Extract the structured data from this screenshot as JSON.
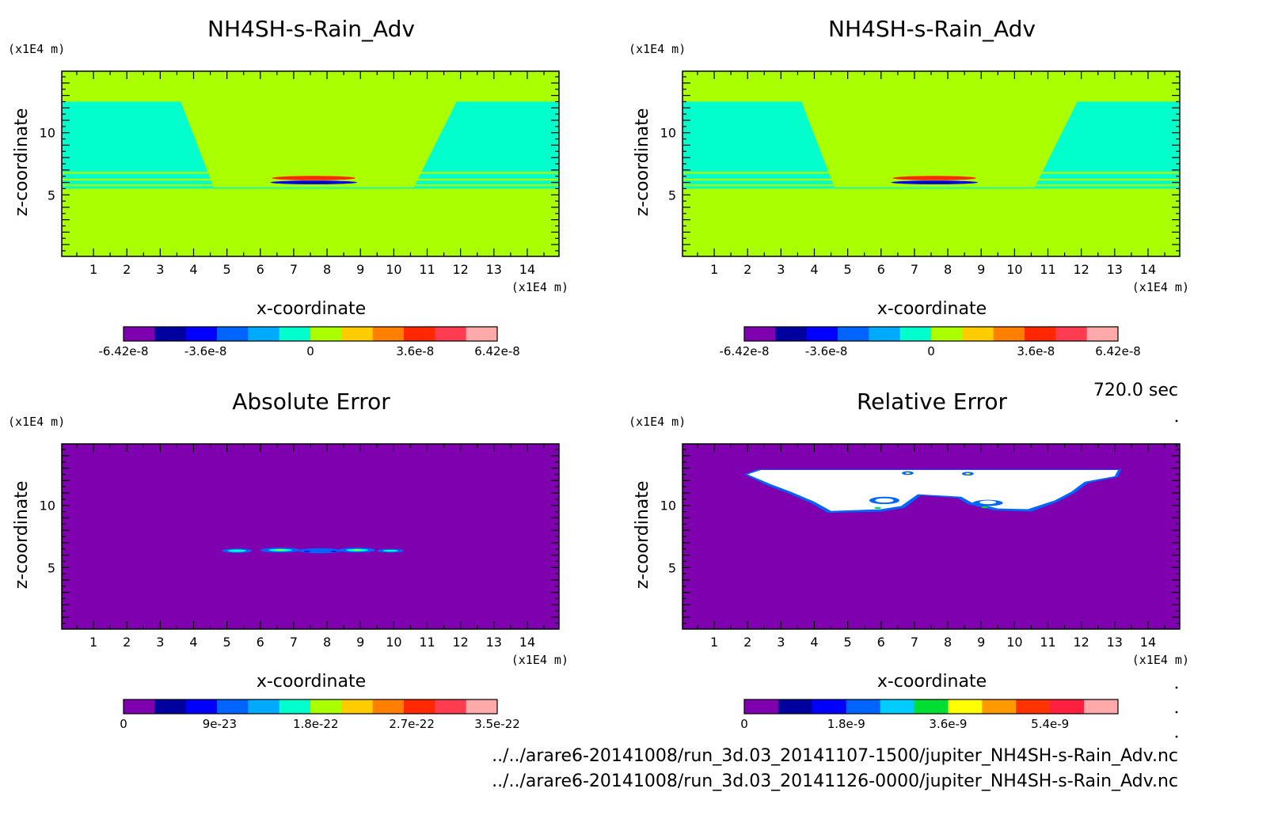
{
  "time_label": "720.0 sec",
  "files": [
    "../../arare6-20141008/run_3d.03_20141107-1500/jupiter_NH4SH-s-Rain_Adv.nc",
    "../../arare6-20141008/run_3d.03_20141126-0000/jupiter_NH4SH-s-Rain_Adv.nc"
  ],
  "chart_data": [
    {
      "type": "heatmap",
      "title": "NH4SH-s-Rain_Adv",
      "xlabel": "x-coordinate",
      "ylabel": "z-coordinate",
      "x_unit": "(x1E4 m)",
      "y_unit": "(x1E4 m)",
      "xlim": [
        0.05,
        14.95
      ],
      "ylim": [
        0.05,
        14.95
      ],
      "xticks": [
        "1",
        "2",
        "3",
        "4",
        "5",
        "6",
        "7",
        "8",
        "9",
        "10",
        "11",
        "12",
        "13",
        "14"
      ],
      "yticks": [
        "5",
        "10"
      ],
      "colorbar": {
        "colors": [
          "#7f00ae",
          "#00009e",
          "#0000ff",
          "#0064ff",
          "#00aaff",
          "#00ffcc",
          "#aaff00",
          "#ffcc00",
          "#ff8000",
          "#ff2800",
          "#ff3c50",
          "#ffaaaa"
        ],
        "labels": [
          "-6.42e-8",
          "-3.6e-8",
          "0",
          "3.6e-8",
          "6.42e-8"
        ],
        "label_values": [
          -6.42e-08,
          -3.6e-08,
          0,
          3.6e-08,
          6.42e-08
        ],
        "range": [
          -6.42e-08,
          6.42e-08
        ]
      },
      "field": {
        "background": "#aaff00",
        "regions": [
          {
            "kind": "band",
            "z": [
              12.5,
              14.95
            ],
            "color": "#aaff00"
          },
          {
            "kind": "band",
            "z": [
              5.5,
              12.5
            ],
            "color": "#00ffcc"
          },
          {
            "kind": "trapezoid",
            "top_x": [
              3.6,
              11.9
            ],
            "bottom_x": [
              4.6,
              10.6
            ],
            "z": [
              5.6,
              12.6
            ],
            "color": "#aaff00"
          },
          {
            "kind": "band",
            "z": [
              6.7,
              6.85
            ],
            "color": "#aaff00"
          },
          {
            "kind": "band",
            "z": [
              6.15,
              6.3
            ],
            "color": "#aaff00"
          },
          {
            "kind": "band",
            "z": [
              5.7,
              5.85
            ],
            "color": "#aaff00"
          },
          {
            "kind": "blob",
            "center": [
              7.6,
              6.35
            ],
            "size": [
              2.5,
              0.35
            ],
            "color": "#ff2800"
          },
          {
            "kind": "blob",
            "center": [
              7.6,
              6.0
            ],
            "size": [
              2.6,
              0.3
            ],
            "color": "#0000ff"
          },
          {
            "kind": "blob",
            "center": [
              7.6,
              6.0
            ],
            "size": [
              1.2,
              0.12
            ],
            "color": "#00009e"
          }
        ]
      }
    },
    {
      "type": "heatmap",
      "title": "NH4SH-s-Rain_Adv",
      "xlabel": "x-coordinate",
      "ylabel": "z-coordinate",
      "x_unit": "(x1E4 m)",
      "y_unit": "(x1E4 m)",
      "xlim": [
        0.05,
        14.95
      ],
      "ylim": [
        0.05,
        14.95
      ],
      "xticks": [
        "1",
        "2",
        "3",
        "4",
        "5",
        "6",
        "7",
        "8",
        "9",
        "10",
        "11",
        "12",
        "13",
        "14"
      ],
      "yticks": [
        "5",
        "10"
      ],
      "colorbar": {
        "colors": [
          "#7f00ae",
          "#00009e",
          "#0000ff",
          "#0064ff",
          "#00aaff",
          "#00ffcc",
          "#aaff00",
          "#ffcc00",
          "#ff8000",
          "#ff2800",
          "#ff3c50",
          "#ffaaaa"
        ],
        "labels": [
          "-6.42e-8",
          "-3.6e-8",
          "0",
          "3.6e-8",
          "6.42e-8"
        ],
        "label_values": [
          -6.42e-08,
          -3.6e-08,
          0,
          3.6e-08,
          6.42e-08
        ],
        "range": [
          -6.42e-08,
          6.42e-08
        ]
      },
      "field": {
        "background": "#aaff00",
        "regions": [
          {
            "kind": "band",
            "z": [
              12.5,
              14.95
            ],
            "color": "#aaff00"
          },
          {
            "kind": "band",
            "z": [
              5.5,
              12.5
            ],
            "color": "#00ffcc"
          },
          {
            "kind": "trapezoid",
            "top_x": [
              3.6,
              11.9
            ],
            "bottom_x": [
              4.6,
              10.6
            ],
            "z": [
              5.6,
              12.6
            ],
            "color": "#aaff00"
          },
          {
            "kind": "band",
            "z": [
              6.7,
              6.85
            ],
            "color": "#aaff00"
          },
          {
            "kind": "band",
            "z": [
              6.15,
              6.3
            ],
            "color": "#aaff00"
          },
          {
            "kind": "band",
            "z": [
              5.7,
              5.85
            ],
            "color": "#aaff00"
          },
          {
            "kind": "blob",
            "center": [
              7.6,
              6.35
            ],
            "size": [
              2.5,
              0.35
            ],
            "color": "#ff2800"
          },
          {
            "kind": "blob",
            "center": [
              7.6,
              6.0
            ],
            "size": [
              2.6,
              0.3
            ],
            "color": "#0000ff"
          },
          {
            "kind": "blob",
            "center": [
              7.6,
              6.0
            ],
            "size": [
              1.2,
              0.12
            ],
            "color": "#00009e"
          }
        ]
      }
    },
    {
      "type": "heatmap",
      "title": "Absolute Error",
      "xlabel": "x-coordinate",
      "ylabel": "z-coordinate",
      "x_unit": "(x1E4 m)",
      "y_unit": "(x1E4 m)",
      "xlim": [
        0.05,
        14.95
      ],
      "ylim": [
        0.05,
        14.95
      ],
      "xticks": [
        "1",
        "2",
        "3",
        "4",
        "5",
        "6",
        "7",
        "8",
        "9",
        "10",
        "11",
        "12",
        "13",
        "14"
      ],
      "yticks": [
        "5",
        "10"
      ],
      "colorbar": {
        "colors": [
          "#7f00ae",
          "#00009e",
          "#0000ff",
          "#0064ff",
          "#00aaff",
          "#00ffcc",
          "#aaff00",
          "#ffcc00",
          "#ff8000",
          "#ff2800",
          "#ff3c50",
          "#ffaaaa"
        ],
        "labels": [
          "0",
          "9e-23",
          "1.8e-22",
          "2.7e-22",
          "3.5e-22"
        ],
        "label_values": [
          0,
          9e-23,
          1.8e-22,
          2.7e-22,
          3.5e-22
        ],
        "range": [
          0,
          3.5e-22
        ]
      },
      "field": {
        "background": "#7f00ae",
        "regions": [
          {
            "kind": "blob",
            "center": [
              5.3,
              6.35
            ],
            "size": [
              0.9,
              0.35
            ],
            "color": "#0064ff"
          },
          {
            "kind": "blob",
            "center": [
              6.6,
              6.4
            ],
            "size": [
              1.2,
              0.4
            ],
            "color": "#0064ff"
          },
          {
            "kind": "blob",
            "center": [
              7.8,
              6.35
            ],
            "size": [
              1.3,
              0.4
            ],
            "color": "#0064ff"
          },
          {
            "kind": "blob",
            "center": [
              8.9,
              6.4
            ],
            "size": [
              1.1,
              0.4
            ],
            "color": "#0064ff"
          },
          {
            "kind": "blob",
            "center": [
              9.9,
              6.35
            ],
            "size": [
              0.8,
              0.3
            ],
            "color": "#0064ff"
          },
          {
            "kind": "blob",
            "center": [
              5.3,
              6.35
            ],
            "size": [
              0.55,
              0.2
            ],
            "color": "#00ffcc"
          },
          {
            "kind": "blob",
            "center": [
              6.6,
              6.4
            ],
            "size": [
              0.7,
              0.2
            ],
            "color": "#00ffcc"
          },
          {
            "kind": "blob",
            "center": [
              8.9,
              6.4
            ],
            "size": [
              0.65,
              0.2
            ],
            "color": "#00ffcc"
          },
          {
            "kind": "blob",
            "center": [
              9.9,
              6.35
            ],
            "size": [
              0.45,
              0.15
            ],
            "color": "#00ffcc"
          },
          {
            "kind": "blob",
            "center": [
              6.6,
              6.42
            ],
            "size": [
              0.3,
              0.1
            ],
            "color": "#aaff00"
          },
          {
            "kind": "blob",
            "center": [
              8.9,
              6.42
            ],
            "size": [
              0.25,
              0.1
            ],
            "color": "#aaff00"
          },
          {
            "kind": "blob",
            "center": [
              7.4,
              6.3
            ],
            "size": [
              0.2,
              0.1
            ],
            "color": "#0000ff"
          },
          {
            "kind": "blob",
            "center": [
              8.2,
              6.3
            ],
            "size": [
              0.2,
              0.1
            ],
            "color": "#0000ff"
          }
        ]
      }
    },
    {
      "type": "heatmap",
      "title": "Relative Error",
      "xlabel": "x-coordinate",
      "ylabel": "z-coordinate",
      "x_unit": "(x1E4 m)",
      "y_unit": "(x1E4 m)",
      "xlim": [
        0.05,
        14.95
      ],
      "ylim": [
        0.05,
        14.95
      ],
      "xticks": [
        "1",
        "2",
        "3",
        "4",
        "5",
        "6",
        "7",
        "8",
        "9",
        "10",
        "11",
        "12",
        "13",
        "14"
      ],
      "yticks": [
        "5",
        "10"
      ],
      "colorbar": {
        "colors": [
          "#7f00ae",
          "#00009e",
          "#0000ff",
          "#0064ff",
          "#00ccff",
          "#00dd33",
          "#ffff00",
          "#ff9900",
          "#ff3300",
          "#ff2040",
          "#ffaaaa"
        ],
        "labels": [
          "0",
          "1.8e-9",
          "3.6e-9",
          "5.4e-9"
        ],
        "label_values": [
          0,
          1.8e-09,
          3.6e-09,
          5.4e-09
        ],
        "range": [
          0,
          6.6e-09
        ]
      },
      "field": {
        "background": "#7f00ae",
        "regions": [
          {
            "kind": "polygon",
            "color": "#0064ff",
            "points": [
              [
                1.9,
                12.5
              ],
              [
                2.3,
                12.9
              ],
              [
                13.2,
                12.9
              ],
              [
                13.1,
                12.3
              ],
              [
                12.2,
                11.8
              ],
              [
                11.8,
                11.0
              ],
              [
                11.3,
                10.3
              ],
              [
                10.5,
                9.5
              ],
              [
                9.4,
                9.6
              ],
              [
                8.6,
                10.1
              ],
              [
                8.3,
                10.6
              ],
              [
                7.2,
                10.8
              ],
              [
                6.7,
                9.8
              ],
              [
                6.0,
                9.5
              ],
              [
                4.4,
                9.4
              ],
              [
                3.9,
                10.2
              ],
              [
                3.2,
                11.0
              ],
              [
                2.6,
                11.6
              ]
            ]
          },
          {
            "kind": "polygon",
            "color": "#ffffff",
            "points": [
              [
                2.0,
                12.5
              ],
              [
                2.4,
                12.85
              ],
              [
                13.1,
                12.85
              ],
              [
                13.0,
                12.35
              ],
              [
                12.1,
                11.9
              ],
              [
                11.7,
                11.1
              ],
              [
                11.2,
                10.4
              ],
              [
                10.4,
                9.7
              ],
              [
                9.5,
                9.75
              ],
              [
                8.7,
                10.25
              ],
              [
                8.4,
                10.7
              ],
              [
                7.1,
                10.9
              ],
              [
                6.6,
                9.95
              ],
              [
                6.0,
                9.7
              ],
              [
                4.5,
                9.55
              ],
              [
                4.0,
                10.3
              ],
              [
                3.3,
                11.1
              ],
              [
                2.7,
                11.7
              ]
            ]
          },
          {
            "kind": "blob",
            "center": [
              6.1,
              10.4
            ],
            "size": [
              0.9,
              0.6
            ],
            "color": "#0064ff"
          },
          {
            "kind": "blob",
            "center": [
              6.1,
              10.4
            ],
            "size": [
              0.55,
              0.35
            ],
            "color": "#ffffff"
          },
          {
            "kind": "blob",
            "center": [
              5.9,
              9.8
            ],
            "size": [
              0.2,
              0.15
            ],
            "color": "#00dd33"
          },
          {
            "kind": "blob",
            "center": [
              9.2,
              10.2
            ],
            "size": [
              0.9,
              0.5
            ],
            "color": "#0064ff"
          },
          {
            "kind": "blob",
            "center": [
              9.2,
              10.25
            ],
            "size": [
              0.5,
              0.3
            ],
            "color": "#ffffff"
          },
          {
            "kind": "blob",
            "center": [
              9.1,
              9.85
            ],
            "size": [
              0.2,
              0.15
            ],
            "color": "#00dd33"
          },
          {
            "kind": "blob",
            "center": [
              6.8,
              12.6
            ],
            "size": [
              0.35,
              0.3
            ],
            "color": "#0064ff"
          },
          {
            "kind": "blob",
            "center": [
              8.6,
              12.55
            ],
            "size": [
              0.35,
              0.3
            ],
            "color": "#0064ff"
          },
          {
            "kind": "blob",
            "center": [
              6.8,
              12.6
            ],
            "size": [
              0.15,
              0.12
            ],
            "color": "#ffff00"
          },
          {
            "kind": "blob",
            "center": [
              8.6,
              12.55
            ],
            "size": [
              0.15,
              0.12
            ],
            "color": "#ffff00"
          }
        ]
      }
    }
  ]
}
